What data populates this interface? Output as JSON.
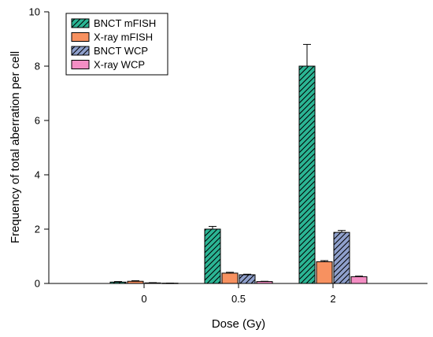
{
  "chart_data": {
    "type": "bar",
    "xlabel": "Dose (Gy)",
    "ylabel": "Frequency of total aberration per cell",
    "categories": [
      "0",
      "0.5",
      "2"
    ],
    "ylim": [
      0,
      10
    ],
    "yticks": [
      0,
      2,
      4,
      6,
      8,
      10
    ],
    "grid": false,
    "legend_position": "top-left",
    "series": [
      {
        "name": "BNCT mFISH",
        "values": [
          0.05,
          2.0,
          8.0
        ],
        "errors": [
          0.02,
          0.1,
          0.8
        ],
        "color": "#2bb594",
        "hatch": "diagonal"
      },
      {
        "name": "X-ray mFISH",
        "values": [
          0.08,
          0.38,
          0.8
        ],
        "errors": [
          0.02,
          0.03,
          0.04
        ],
        "color": "#f79160",
        "hatch": "none"
      },
      {
        "name": "BNCT WCP",
        "values": [
          0.02,
          0.32,
          1.88
        ],
        "errors": [
          0.01,
          0.02,
          0.07
        ],
        "color": "#8fa0cc",
        "hatch": "diagonal"
      },
      {
        "name": "X-ray WCP",
        "values": [
          0.01,
          0.07,
          0.25
        ],
        "errors": [
          0.005,
          0.01,
          0.02
        ],
        "color": "#f48ec4",
        "hatch": "none"
      }
    ]
  }
}
